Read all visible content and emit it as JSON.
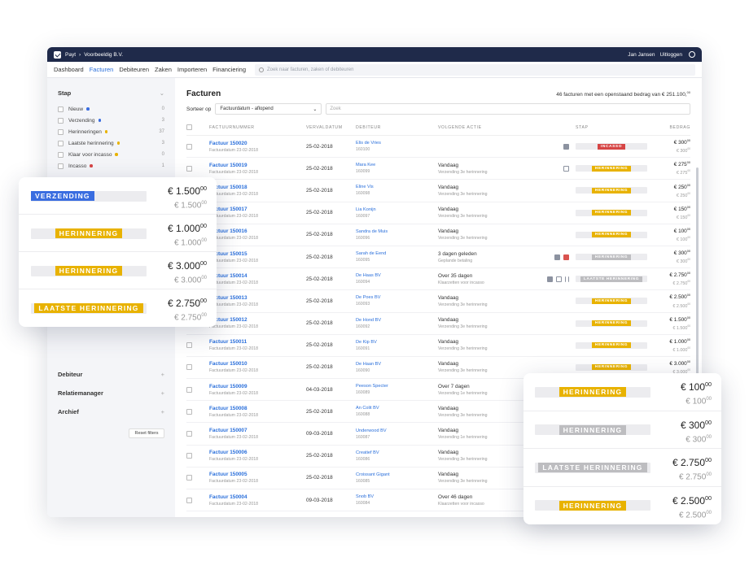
{
  "colors": {
    "blue": "#3a6de0",
    "yellow": "#e8b200",
    "gray": "#bdbdc0",
    "red": "#d64545",
    "link": "#2a6fdb",
    "navy": "#1f2a4a"
  },
  "topbar": {
    "brand": "Payt",
    "separator": "›",
    "company": "Voorbeeldig B.V.",
    "user": "Jan Jansen",
    "logout": "Uitloggen",
    "globe_icon": "globe-icon"
  },
  "nav": {
    "items": [
      "Dashboard",
      "Facturen",
      "Debiteuren",
      "Zaken",
      "Importeren",
      "Financiering"
    ],
    "active": "Facturen",
    "search_placeholder": "Zoek naar facturen, zaken of debiteuren"
  },
  "sidebar": {
    "stap_title": "Stap",
    "filters": [
      {
        "label": "Nieuw",
        "count": "0",
        "dot": "#3a6de0"
      },
      {
        "label": "Verzending",
        "count": "3",
        "dot": "#3a6de0"
      },
      {
        "label": "Herinneringen",
        "count": "37",
        "dot": "#e8b200"
      },
      {
        "label": "Laatste herinnering",
        "count": "3",
        "dot": "#e8b200"
      },
      {
        "label": "Klaar voor incasso",
        "count": "0",
        "dot": "#e8b200"
      },
      {
        "label": "Incasso",
        "count": "1",
        "dot": "#d64545"
      }
    ],
    "sections": [
      "Debiteur",
      "Relatiemanager",
      "Archief"
    ],
    "reset": "Reset filters"
  },
  "main": {
    "title": "Facturen",
    "summary": "46 facturen met een openstaand bedrag van € 251.100,00",
    "sort_label": "Sorteer op",
    "sort_value": "Factuurdatum - aflopend",
    "search_placeholder": "Zoek",
    "headers": [
      "FACTUURNUMMER",
      "VERVALDATUM",
      "DEBITEUR",
      "VOLGENDE ACTIE",
      "STAP",
      "BEDRAG"
    ],
    "rows": [
      {
        "nr": "Factuur 150020",
        "fd": "Factuurdatum 23-02-2018",
        "due": "25-02-2018",
        "deb": "Elis de Vries",
        "debnr": "160100",
        "act": "",
        "act2": "",
        "icons": [
          "chat-icon"
        ],
        "stap": "INCASSO",
        "stapc": "red",
        "amt": "€ 300",
        "amt2": "€ 300"
      },
      {
        "nr": "Factuur 150019",
        "fd": "Factuurdatum 23-02-2018",
        "due": "25-02-2018",
        "deb": "Mara Kee",
        "debnr": "160099",
        "act": "Vandaag",
        "act2": "Verzending 3e herinnering",
        "icons": [
          "clipboard-icon"
        ],
        "stap": "HERINNERING",
        "stapc": "yellow",
        "amt": "€ 275",
        "amt2": "€ 275"
      },
      {
        "nr": "Factuur 150018",
        "fd": "Factuurdatum 23-02-2018",
        "due": "25-02-2018",
        "deb": "Eline Vis",
        "debnr": "160098",
        "act": "Vandaag",
        "act2": "Verzending 3e herinnering",
        "icons": [],
        "stap": "HERINNERING",
        "stapc": "yellow",
        "amt": "€ 250",
        "amt2": "€ 250"
      },
      {
        "nr": "Factuur 150017",
        "fd": "Factuurdatum 23-02-2018",
        "due": "25-02-2018",
        "deb": "Lia Konijn",
        "debnr": "160097",
        "act": "Vandaag",
        "act2": "Verzending 3e herinnering",
        "icons": [],
        "stap": "HERINNERING",
        "stapc": "yellow",
        "amt": "€ 150",
        "amt2": "€ 150"
      },
      {
        "nr": "Factuur 150016",
        "fd": "Factuurdatum 23-02-2018",
        "due": "25-02-2018",
        "deb": "Sandra de Muis",
        "debnr": "160096",
        "act": "Vandaag",
        "act2": "Verzending 3e herinnering",
        "icons": [],
        "stap": "HERINNERING",
        "stapc": "yellow",
        "amt": "€ 100",
        "amt2": "€ 100"
      },
      {
        "nr": "Factuur 150015",
        "fd": "Factuurdatum 23-02-2018",
        "due": "25-02-2018",
        "deb": "Sarah de Eend",
        "debnr": "160095",
        "act": "3 dagen geleden",
        "act2": "Geplande betaling",
        "icons": [
          "chat-icon",
          "calendar-icon"
        ],
        "stap": "HERINNERING",
        "stapc": "gray",
        "amt": "€ 300",
        "amt2": "€ 300"
      },
      {
        "nr": "Factuur 150014",
        "fd": "Factuurdatum 23-02-2018",
        "due": "25-02-2018",
        "deb": "De Haas BV",
        "debnr": "160094",
        "act": "Over 35 dagen",
        "act2": "Klaarzetten voor incasso",
        "icons": [
          "chat-icon",
          "clipboard-icon",
          "pause-icon"
        ],
        "stap": "LAATSTE HERINNERING",
        "stapc": "gray",
        "amt": "€ 2.750",
        "amt2": "€ 2.750"
      },
      {
        "nr": "Factuur 150013",
        "fd": "Factuurdatum 23-02-2018",
        "due": "25-02-2018",
        "deb": "De Poes BV",
        "debnr": "160093",
        "act": "Vandaag",
        "act2": "Verzending 3e herinnering",
        "icons": [],
        "stap": "HERINNERING",
        "stapc": "yellow",
        "amt": "€ 2.500",
        "amt2": "€ 2.500"
      },
      {
        "nr": "Factuur 150012",
        "fd": "Factuurdatum 23-02-2018",
        "due": "25-02-2018",
        "deb": "De Hond BV",
        "debnr": "160092",
        "act": "Vandaag",
        "act2": "Verzending 3e herinnering",
        "icons": [],
        "stap": "HERINNERING",
        "stapc": "yellow",
        "amt": "€ 1.500",
        "amt2": "€ 1.500"
      },
      {
        "nr": "Factuur 150011",
        "fd": "Factuurdatum 23-02-2018",
        "due": "25-02-2018",
        "deb": "De Kip BV",
        "debnr": "160091",
        "act": "Vandaag",
        "act2": "Verzending 3e herinnering",
        "icons": [],
        "stap": "HERINNERING",
        "stapc": "yellow",
        "amt": "€ 1.000",
        "amt2": "€ 1.000"
      },
      {
        "nr": "Factuur 150010",
        "fd": "Factuurdatum 23-02-2018",
        "due": "25-02-2018",
        "deb": "De Haan BV",
        "debnr": "160090",
        "act": "Vandaag",
        "act2": "Verzending 3e herinnering",
        "icons": [],
        "stap": "HERINNERING",
        "stapc": "yellow",
        "amt": "€ 3.000",
        "amt2": "€ 3.000"
      },
      {
        "nr": "Factuur 150009",
        "fd": "Factuurdatum 23-02-2018",
        "due": "04-03-2018",
        "deb": "Peeson Specter",
        "debnr": "160089",
        "act": "Over 7 dagen",
        "act2": "Verzending 1e herinnering",
        "icons": [],
        "stap": "",
        "stapc": "",
        "amt": "",
        "amt2": ""
      },
      {
        "nr": "Factuur 150008",
        "fd": "Factuurdatum 23-02-2018",
        "due": "25-02-2018",
        "deb": "An Colit BV",
        "debnr": "160088",
        "act": "Vandaag",
        "act2": "Verzending 3e herinnering",
        "icons": [],
        "stap": "",
        "stapc": "",
        "amt": "",
        "amt2": ""
      },
      {
        "nr": "Factuur 150007",
        "fd": "Factuurdatum 23-02-2018",
        "due": "09-03-2018",
        "deb": "Underwood BV",
        "debnr": "160087",
        "act": "Vandaag",
        "act2": "Verzending 1e herinnering",
        "icons": [],
        "stap": "",
        "stapc": "",
        "amt": "",
        "amt2": ""
      },
      {
        "nr": "Factuur 150006",
        "fd": "Factuurdatum 23-02-2018",
        "due": "25-02-2018",
        "deb": "Creatief BV",
        "debnr": "160086",
        "act": "Vandaag",
        "act2": "Verzending 3e herinnering",
        "icons": [],
        "stap": "",
        "stapc": "",
        "amt": "",
        "amt2": ""
      },
      {
        "nr": "Factuur 150005",
        "fd": "Factuurdatum 23-02-2018",
        "due": "25-02-2018",
        "deb": "Croissant Gigant",
        "debnr": "160085",
        "act": "Vandaag",
        "act2": "Verzending 3e herinnering",
        "icons": [],
        "stap": "",
        "stapc": "",
        "amt": "",
        "amt2": ""
      },
      {
        "nr": "Factuur 150004",
        "fd": "Factuurdatum 23-02-2018",
        "due": "09-03-2018",
        "deb": "Snob BV",
        "debnr": "160084",
        "act": "Over 46 dagen",
        "act2": "Klaarzetten voor incasso",
        "icons": [],
        "stap": "",
        "stapc": "",
        "amt": "",
        "amt2": ""
      }
    ]
  },
  "cardLeft": [
    {
      "stap": "VERZENDING",
      "color": "blue",
      "amt": "€ 1.500",
      "amt2": "€ 1.500"
    },
    {
      "stap": "HERINNERING",
      "color": "yellow",
      "amt": "€ 1.000",
      "amt2": "€ 1.000"
    },
    {
      "stap": "HERINNERING",
      "color": "yellow",
      "amt": "€ 3.000",
      "amt2": "€ 3.000"
    },
    {
      "stap": "LAATSTE HERINNERING",
      "color": "yellow",
      "amt": "€ 2.750",
      "amt2": "€ 2.750"
    }
  ],
  "cardRight": [
    {
      "stap": "HERINNERING",
      "color": "yellow",
      "amt": "€ 100",
      "amt2": "€ 100"
    },
    {
      "stap": "HERINNERING",
      "color": "gray",
      "amt": "€ 300",
      "amt2": "€ 300"
    },
    {
      "stap": "LAATSTE HERINNERING",
      "color": "gray",
      "amt": "€ 2.750",
      "amt2": "€ 2.750"
    },
    {
      "stap": "HERINNERING",
      "color": "yellow",
      "amt": "€ 2.500",
      "amt2": "€ 2.500"
    }
  ],
  "cents": "00"
}
